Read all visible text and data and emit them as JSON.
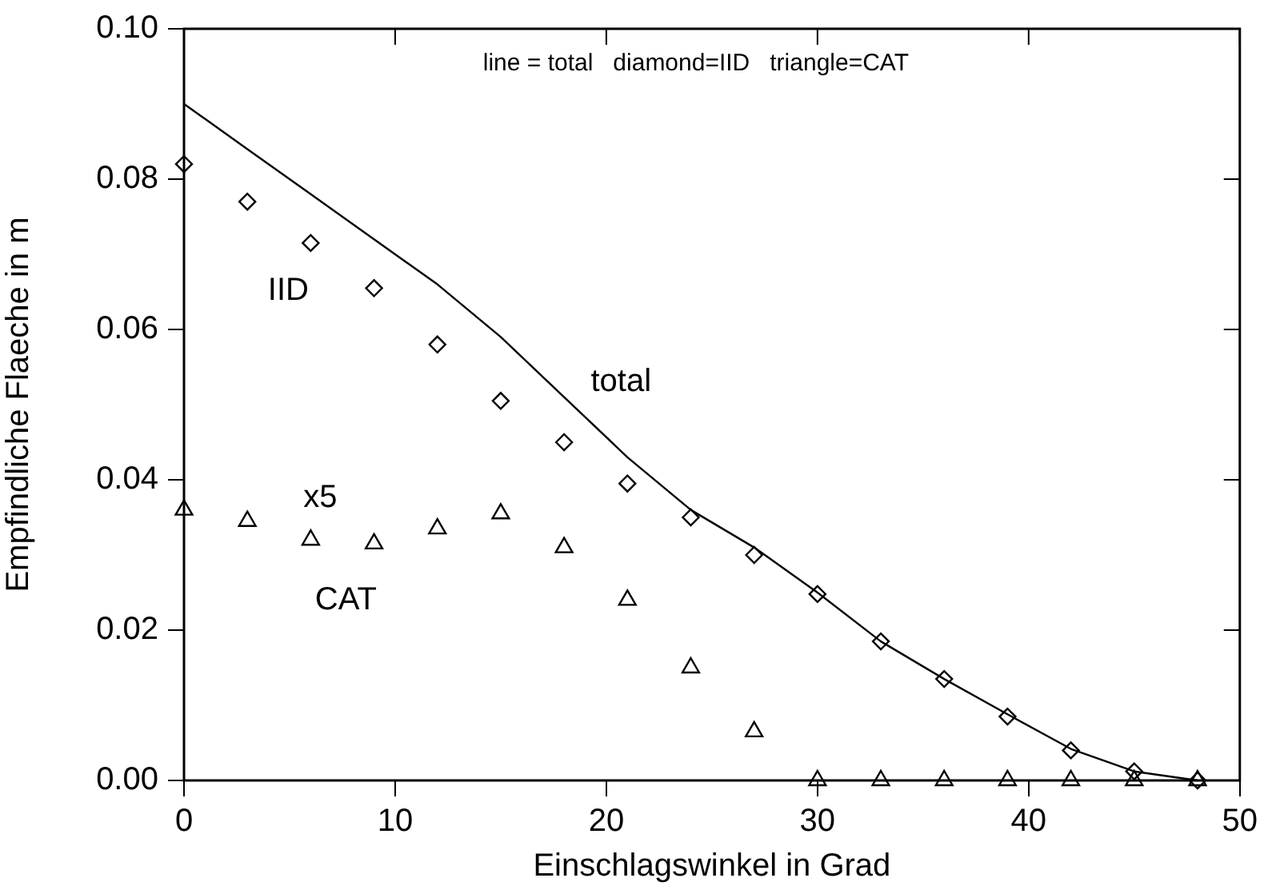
{
  "chart_data": {
    "type": "scatter",
    "xlabel": "Einschlagswinkel in Grad",
    "ylabel": "Empfindliche Flaeche in m",
    "x": [
      0,
      3,
      6,
      9,
      12,
      15,
      18,
      21,
      24,
      27,
      30,
      33,
      36,
      39,
      42,
      45,
      48
    ],
    "series": [
      {
        "type": "line",
        "name": "total",
        "color": "#000000",
        "marker": "none",
        "values": [
          0.09,
          0.084,
          0.078,
          0.072,
          0.066,
          0.059,
          0.051,
          0.043,
          0.036,
          0.031,
          0.025,
          0.0185,
          0.0135,
          0.0088,
          0.0042,
          0.0012,
          0.0
        ]
      },
      {
        "name": "IID",
        "color": "#000000",
        "marker": "diamond",
        "values": [
          0.082,
          0.077,
          0.0715,
          0.0655,
          0.058,
          0.0505,
          0.045,
          0.0395,
          0.035,
          0.03,
          0.0248,
          0.0185,
          0.0135,
          0.0085,
          0.004,
          0.0012,
          0.0
        ]
      },
      {
        "name": "CAT",
        "color": "#000000",
        "marker": "triangle",
        "values": [
          0.036,
          0.0345,
          0.032,
          0.0315,
          0.0335,
          0.0355,
          0.031,
          0.024,
          0.015,
          0.0065,
          0.0,
          0.0,
          0.0,
          0.0,
          0.0,
          0.0,
          0.0
        ]
      }
    ],
    "xlim": [
      0,
      50
    ],
    "xticks": [
      0,
      10,
      20,
      30,
      40,
      50
    ],
    "ylim": [
      0,
      0.1
    ],
    "yticks": [
      {
        "value": 0,
        "label": "0.00"
      },
      {
        "value": 0.02,
        "label": "0.02"
      },
      {
        "value": 0.04,
        "label": "0.04"
      },
      {
        "value": 0.06,
        "label": "0.06"
      },
      {
        "value": 0.08,
        "label": "0.08"
      },
      {
        "value": 0.1,
        "label": "0.10"
      }
    ],
    "annotations": [
      "line = total   diamond=IID   triangle=CAT",
      "x5"
    ],
    "legend": false,
    "grid": false
  }
}
